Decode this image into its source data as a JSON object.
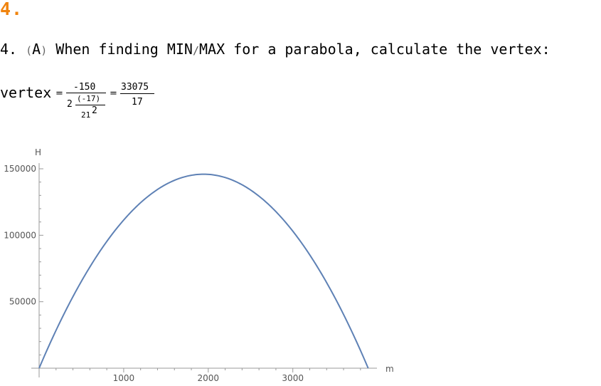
{
  "heading": "4.",
  "statement": {
    "number": "4.",
    "paren_open": "(",
    "letter": "A",
    "paren_close": ")",
    "text_before": "When finding MIN",
    "slash": "/",
    "text_after": "MAX for a parabola, calculate the vertex:"
  },
  "formula": {
    "variable": "vertex",
    "equals": "=",
    "numerator": "-150",
    "den_coefficient": "2",
    "inner_numerator": "(-17)",
    "inner_denominator": "21",
    "inner_exponent": "2",
    "result_numerator": "33075",
    "result_denominator": "17"
  },
  "chart_data": {
    "type": "line",
    "xlabel": "m",
    "ylabel": "H",
    "xlim": [
      0,
      4150
    ],
    "ylim": [
      0,
      155000
    ],
    "x_ticks": [
      1000,
      2000,
      3000
    ],
    "x_tick_labels": [
      "1000",
      "2000",
      "3000"
    ],
    "y_ticks": [
      50000,
      100000,
      150000
    ],
    "y_tick_labels": [
      "50000",
      "100000",
      "150000"
    ],
    "grid": false,
    "line_color": "#5e81b5",
    "series": [
      {
        "function": "150*m - 17*m^2/441",
        "domain": [
          0,
          3891.2
        ],
        "vertex": [
          1945.6,
          145915
        ]
      }
    ]
  }
}
